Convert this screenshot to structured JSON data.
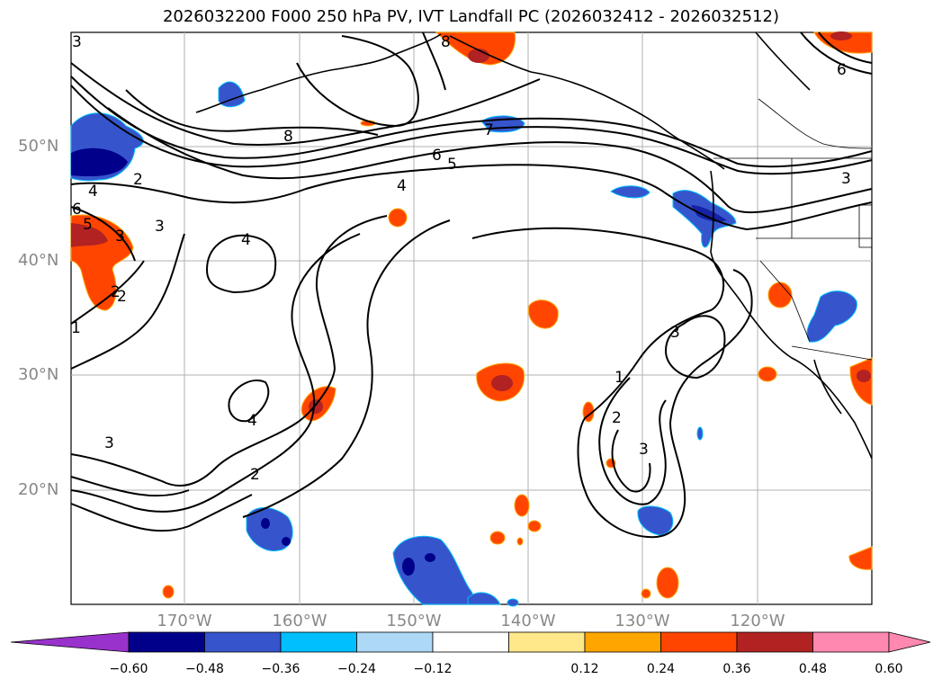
{
  "title": "2026032200 F000 250 hPa PV, IVT Landfall PC (2026032412 - 2026032512)",
  "lat_labels": [
    "50°N",
    "40°N",
    "30°N",
    "20°N"
  ],
  "lon_labels": [
    "170°W",
    "160°W",
    "150°W",
    "140°W",
    "130°W",
    "120°W"
  ],
  "contour_labels": [
    "3",
    "2",
    "4",
    "6",
    "5",
    "1",
    "2",
    "3",
    "8",
    "7",
    "6",
    "5",
    "4",
    "4",
    "3",
    "2",
    "1",
    "2",
    "3",
    "3",
    "6",
    "8",
    "3",
    "4",
    "3",
    "2"
  ],
  "colorbar": {
    "ticks": [
      "−0.60",
      "−0.48",
      "−0.36",
      "−0.24",
      "−0.12",
      "0.12",
      "0.24",
      "0.36",
      "0.48",
      "0.60"
    ],
    "colors": [
      "#9932cc",
      "#00008b",
      "#3655cc",
      "#00bfff",
      "#add8f6",
      "#ffffff",
      "#ffe88a",
      "#ffa500",
      "#ff4500",
      "#b22222",
      "#ff88b0"
    ]
  },
  "colors": {
    "land": "#ffffff",
    "grid": "#b0b0b0",
    "axis_label": "#888888"
  }
}
